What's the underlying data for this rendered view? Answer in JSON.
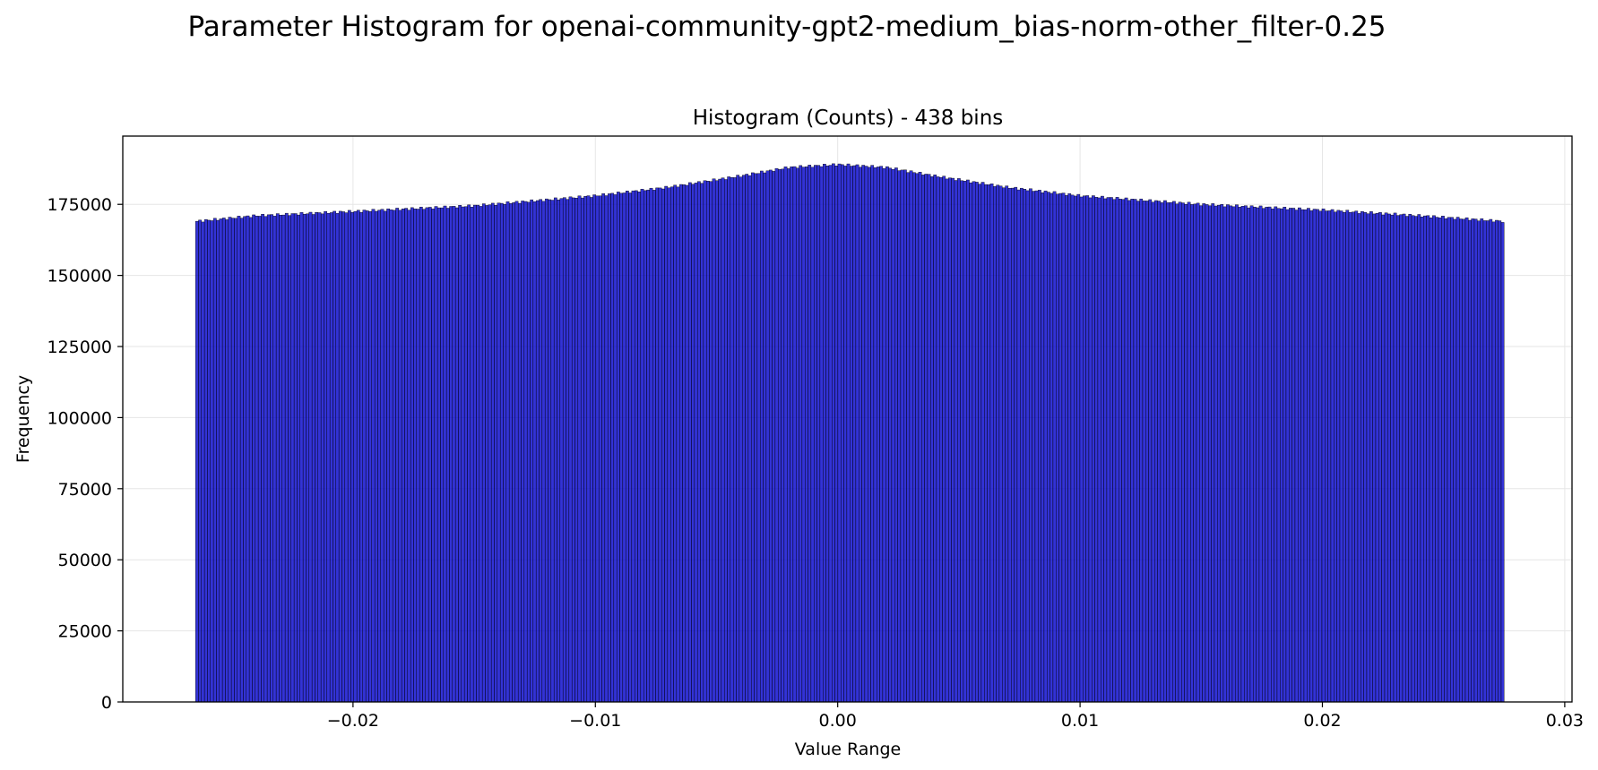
{
  "figure": {
    "suptitle": "Parameter Histogram for openai-community-gpt2-medium_bias-norm-other_filter-0.25"
  },
  "chart_data": {
    "type": "bar",
    "title": "Histogram (Counts) - 438 bins",
    "xlabel": "Value Range",
    "ylabel": "Frequency",
    "bins": 438,
    "bin_range": [
      -0.0265,
      0.0275
    ],
    "xlim": [
      -0.0295,
      0.0303
    ],
    "ylim": [
      0,
      199000
    ],
    "xticks": [
      -0.02,
      -0.01,
      0.0,
      0.01,
      0.02,
      0.03
    ],
    "xtick_labels": [
      "−0.02",
      "−0.01",
      "0.00",
      "0.01",
      "0.02",
      "0.03"
    ],
    "yticks": [
      0,
      25000,
      50000,
      75000,
      100000,
      125000,
      150000,
      175000
    ],
    "ytick_labels": [
      "0",
      "25000",
      "50000",
      "75000",
      "100000",
      "125000",
      "150000",
      "175000"
    ],
    "profile_points": [
      [
        -0.0265,
        169000
      ],
      [
        -0.024,
        171000
      ],
      [
        -0.02,
        172500
      ],
      [
        -0.015,
        174500
      ],
      [
        -0.01,
        178000
      ],
      [
        -0.007,
        181000
      ],
      [
        -0.004,
        185000
      ],
      [
        -0.002,
        188000
      ],
      [
        0.0,
        189000
      ],
      [
        0.002,
        188000
      ],
      [
        0.004,
        185000
      ],
      [
        0.007,
        181000
      ],
      [
        0.01,
        178000
      ],
      [
        0.015,
        175000
      ],
      [
        0.02,
        173000
      ],
      [
        0.024,
        171000
      ],
      [
        0.0275,
        169000
      ]
    ],
    "grid": true,
    "legend": "none",
    "colors": {
      "bar_fill": "#0000cc",
      "bar_edge": "#000000",
      "grid": "#e6e6e6"
    }
  }
}
